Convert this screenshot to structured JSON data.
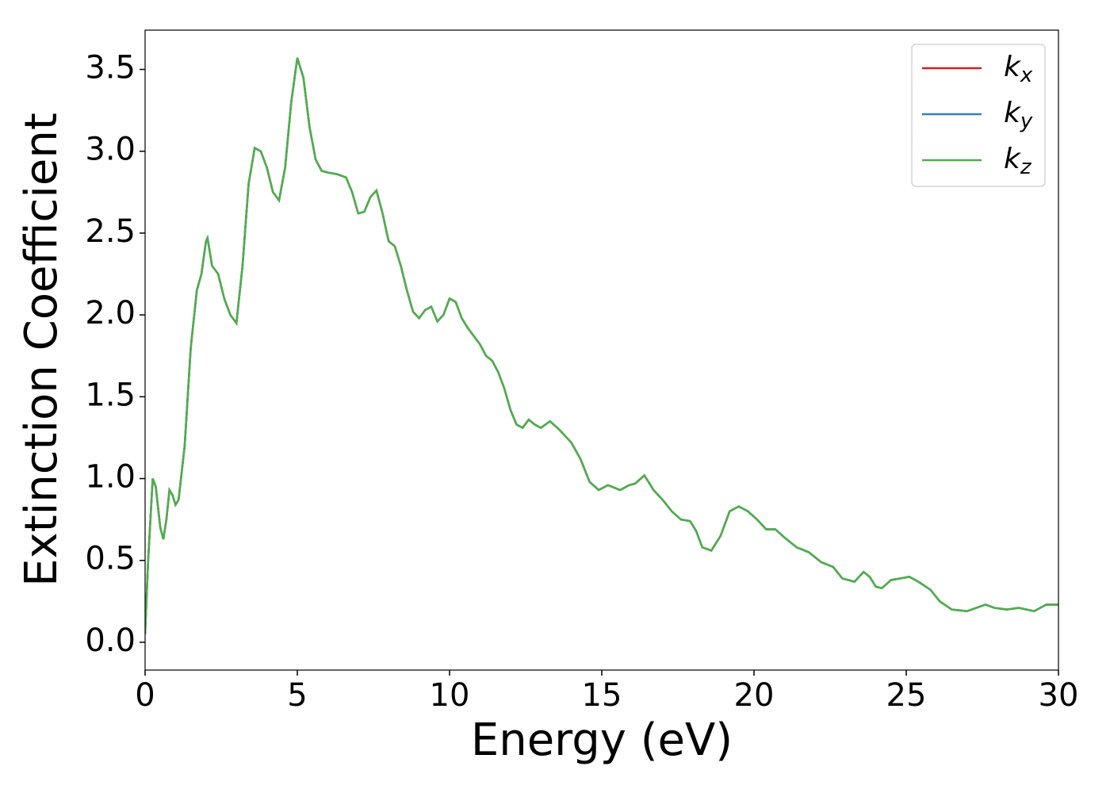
{
  "chart_data": {
    "type": "line",
    "xlabel": "Energy (eV)",
    "ylabel": "Extinction Coefficient",
    "x": [
      0,
      0.1,
      0.25,
      0.35,
      0.5,
      0.6,
      0.7,
      0.8,
      0.9,
      1.0,
      1.1,
      1.3,
      1.5,
      1.7,
      1.85,
      2.0,
      2.05,
      2.2,
      2.4,
      2.6,
      2.8,
      3.0,
      3.2,
      3.4,
      3.6,
      3.8,
      4.0,
      4.2,
      4.4,
      4.6,
      4.8,
      5.0,
      5.2,
      5.4,
      5.6,
      5.8,
      6.0,
      6.3,
      6.6,
      6.8,
      7.0,
      7.2,
      7.4,
      7.6,
      7.8,
      8.0,
      8.2,
      8.4,
      8.6,
      8.8,
      9.0,
      9.2,
      9.4,
      9.6,
      9.8,
      10.0,
      10.2,
      10.4,
      10.6,
      10.8,
      11.0,
      11.2,
      11.4,
      11.6,
      11.8,
      12.0,
      12.2,
      12.4,
      12.6,
      12.8,
      13.0,
      13.3,
      13.6,
      14.0,
      14.3,
      14.6,
      14.9,
      15.2,
      15.6,
      15.9,
      16.1,
      16.4,
      16.7,
      17.0,
      17.3,
      17.6,
      17.9,
      18.1,
      18.3,
      18.6,
      18.9,
      19.2,
      19.5,
      19.8,
      20.1,
      20.4,
      20.7,
      21.0,
      21.4,
      21.8,
      22.2,
      22.6,
      22.9,
      23.3,
      23.6,
      23.8,
      24.0,
      24.2,
      24.5,
      24.8,
      25.1,
      25.4,
      25.8,
      26.1,
      26.5,
      27.0,
      27.3,
      27.6,
      27.9,
      28.3,
      28.7,
      29.2,
      29.6,
      30.0
    ],
    "series": [
      {
        "name": "kx",
        "color": "#e41a1c",
        "values": [
          0.05,
          0.5,
          1.0,
          0.95,
          0.7,
          0.63,
          0.75,
          0.93,
          0.9,
          0.84,
          0.87,
          1.2,
          1.8,
          2.15,
          2.25,
          2.45,
          2.47,
          2.3,
          2.25,
          2.1,
          2.0,
          1.95,
          2.3,
          2.8,
          3.02,
          3.0,
          2.9,
          2.75,
          2.7,
          2.9,
          3.3,
          3.57,
          3.45,
          3.15,
          2.95,
          2.88,
          2.87,
          2.86,
          2.84,
          2.75,
          2.62,
          2.63,
          2.72,
          2.76,
          2.62,
          2.45,
          2.42,
          2.3,
          2.15,
          2.02,
          1.98,
          2.03,
          2.05,
          1.96,
          2.0,
          2.1,
          2.08,
          1.98,
          1.92,
          1.87,
          1.82,
          1.75,
          1.72,
          1.65,
          1.55,
          1.42,
          1.33,
          1.31,
          1.36,
          1.33,
          1.31,
          1.35,
          1.3,
          1.22,
          1.12,
          0.98,
          0.93,
          0.96,
          0.93,
          0.96,
          0.97,
          1.02,
          0.93,
          0.87,
          0.8,
          0.75,
          0.74,
          0.68,
          0.58,
          0.56,
          0.65,
          0.8,
          0.83,
          0.8,
          0.75,
          0.69,
          0.69,
          0.64,
          0.58,
          0.55,
          0.49,
          0.46,
          0.39,
          0.37,
          0.43,
          0.4,
          0.34,
          0.33,
          0.38,
          0.39,
          0.4,
          0.37,
          0.32,
          0.25,
          0.2,
          0.19,
          0.21,
          0.23,
          0.21,
          0.2,
          0.21,
          0.19,
          0.23,
          0.23
        ]
      },
      {
        "name": "ky",
        "color": "#377eb8",
        "values": [
          0.05,
          0.5,
          1.0,
          0.95,
          0.7,
          0.63,
          0.75,
          0.93,
          0.9,
          0.84,
          0.87,
          1.2,
          1.8,
          2.15,
          2.25,
          2.45,
          2.47,
          2.3,
          2.25,
          2.1,
          2.0,
          1.95,
          2.3,
          2.8,
          3.02,
          3.0,
          2.9,
          2.75,
          2.7,
          2.9,
          3.3,
          3.57,
          3.45,
          3.15,
          2.95,
          2.88,
          2.87,
          2.86,
          2.84,
          2.75,
          2.62,
          2.63,
          2.72,
          2.76,
          2.62,
          2.45,
          2.42,
          2.3,
          2.15,
          2.02,
          1.98,
          2.03,
          2.05,
          1.96,
          2.0,
          2.1,
          2.08,
          1.98,
          1.92,
          1.87,
          1.82,
          1.75,
          1.72,
          1.65,
          1.55,
          1.42,
          1.33,
          1.31,
          1.36,
          1.33,
          1.31,
          1.35,
          1.3,
          1.22,
          1.12,
          0.98,
          0.93,
          0.96,
          0.93,
          0.96,
          0.97,
          1.02,
          0.93,
          0.87,
          0.8,
          0.75,
          0.74,
          0.68,
          0.58,
          0.56,
          0.65,
          0.8,
          0.83,
          0.8,
          0.75,
          0.69,
          0.69,
          0.64,
          0.58,
          0.55,
          0.49,
          0.46,
          0.39,
          0.37,
          0.43,
          0.4,
          0.34,
          0.33,
          0.38,
          0.39,
          0.4,
          0.37,
          0.32,
          0.25,
          0.2,
          0.19,
          0.21,
          0.23,
          0.21,
          0.2,
          0.21,
          0.19,
          0.23,
          0.23
        ]
      },
      {
        "name": "kz",
        "color": "#4daf4a",
        "values": [
          0.05,
          0.5,
          1.0,
          0.95,
          0.7,
          0.63,
          0.75,
          0.93,
          0.9,
          0.84,
          0.87,
          1.2,
          1.8,
          2.15,
          2.25,
          2.45,
          2.47,
          2.3,
          2.25,
          2.1,
          2.0,
          1.95,
          2.3,
          2.8,
          3.02,
          3.0,
          2.9,
          2.75,
          2.7,
          2.9,
          3.3,
          3.57,
          3.45,
          3.15,
          2.95,
          2.88,
          2.87,
          2.86,
          2.84,
          2.75,
          2.62,
          2.63,
          2.72,
          2.76,
          2.62,
          2.45,
          2.42,
          2.3,
          2.15,
          2.02,
          1.98,
          2.03,
          2.05,
          1.96,
          2.0,
          2.1,
          2.08,
          1.98,
          1.92,
          1.87,
          1.82,
          1.75,
          1.72,
          1.65,
          1.55,
          1.42,
          1.33,
          1.31,
          1.36,
          1.33,
          1.31,
          1.35,
          1.3,
          1.22,
          1.12,
          0.98,
          0.93,
          0.96,
          0.93,
          0.96,
          0.97,
          1.02,
          0.93,
          0.87,
          0.8,
          0.75,
          0.74,
          0.68,
          0.58,
          0.56,
          0.65,
          0.8,
          0.83,
          0.8,
          0.75,
          0.69,
          0.69,
          0.64,
          0.58,
          0.55,
          0.49,
          0.46,
          0.39,
          0.37,
          0.43,
          0.4,
          0.34,
          0.33,
          0.38,
          0.39,
          0.4,
          0.37,
          0.32,
          0.25,
          0.2,
          0.19,
          0.21,
          0.23,
          0.21,
          0.2,
          0.21,
          0.19,
          0.23,
          0.23
        ]
      }
    ],
    "xlim": [
      0,
      30
    ],
    "xticks": [
      0,
      5,
      10,
      15,
      20,
      25,
      30
    ],
    "ylim": [
      -0.17,
      3.74
    ],
    "yticks": [
      {
        "value": 0,
        "label": "0.0"
      },
      0.5,
      {
        "value": 1,
        "label": "1.0"
      },
      1.5,
      {
        "value": 2,
        "label": "2.0"
      },
      2.5,
      {
        "value": 3,
        "label": "3.0"
      },
      3.5
    ],
    "grid": false,
    "legend": "upper right"
  }
}
